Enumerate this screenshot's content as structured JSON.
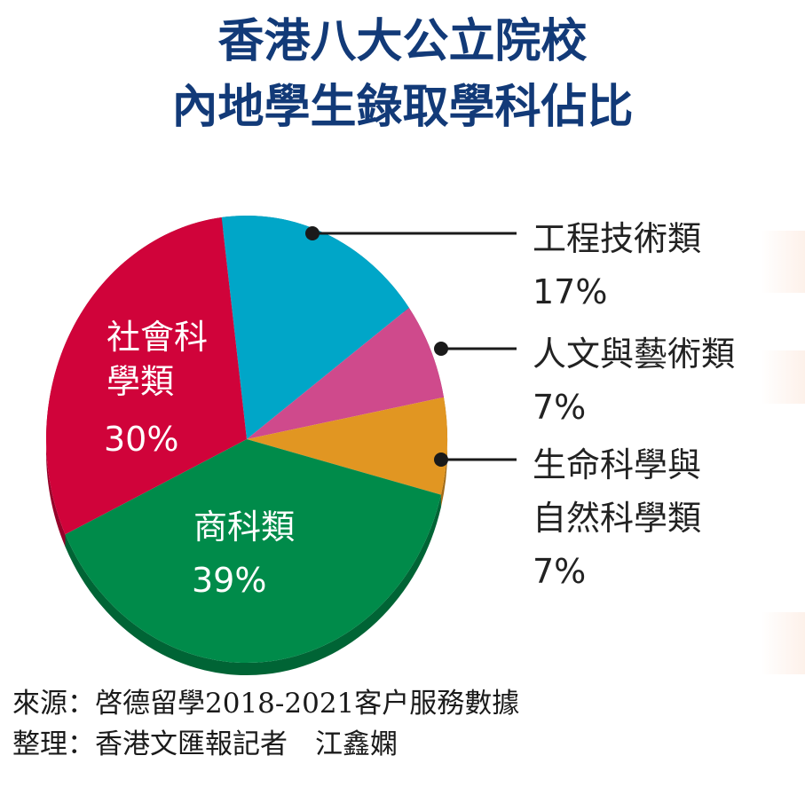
{
  "title": {
    "line1": "香港八大公立院校",
    "line2": "內地學生錄取學科佔比"
  },
  "chart_data": {
    "type": "pie",
    "title": "香港八大公立院校 內地學生錄取學科佔比",
    "slices": [
      {
        "name": "工程技術類",
        "value": 17,
        "label": "17%",
        "color": "#00a6c8"
      },
      {
        "name": "人文與藝術類",
        "value": 7,
        "label": "7%",
        "color": "#cf4a8c"
      },
      {
        "name": "生命科學與自然科學類",
        "value": 7,
        "label": "7%",
        "color": "#e19622"
      },
      {
        "name": "商科類",
        "value": 39,
        "label": "39%",
        "color": "#008b4a"
      },
      {
        "name": "社會科學類",
        "value": 30,
        "label": "30%",
        "color": "#d0033a"
      }
    ],
    "inside_labels": {
      "social": {
        "line1": "社會科",
        "line2": "學類",
        "pct": "30%"
      },
      "business": {
        "line1": "商科類",
        "pct": "39%"
      }
    },
    "outside_labels": {
      "engineering": {
        "line1": "工程技術類",
        "pct": "17%"
      },
      "humanities": {
        "line1": "人文與藝術類",
        "pct": "7%"
      },
      "science": {
        "line1": "生命科學與",
        "line2": "自然科學類",
        "pct": "7%"
      }
    }
  },
  "footer": {
    "source": "來源：啓德留學2018-2021客户服務數據",
    "compiled": "整理：香港文匯報記者　江鑫嫻"
  }
}
